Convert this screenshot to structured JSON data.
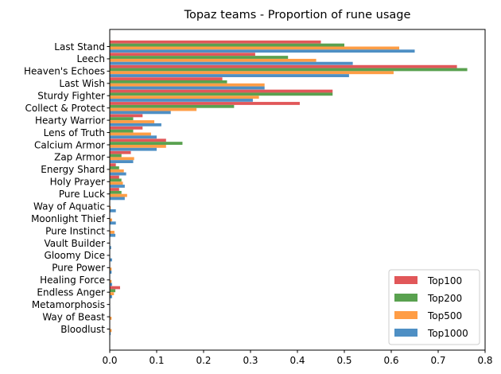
{
  "chart_data": {
    "type": "bar",
    "orientation": "horizontal",
    "title": "Topaz teams - Proportion of rune usage",
    "xlabel": "",
    "ylabel": "",
    "xlim": [
      0,
      0.8
    ],
    "xticks": [
      "0.0",
      "0.1",
      "0.2",
      "0.3",
      "0.4",
      "0.5",
      "0.6",
      "0.7",
      "0.8"
    ],
    "grid": false,
    "legend_position": "lower-right",
    "categories": [
      "Last Stand",
      "Leech",
      "Heaven's Echoes",
      "Last Wish",
      "Sturdy Fighter",
      "Collect & Protect",
      "Hearty Warrior",
      "Lens of Truth",
      "Calcium Armor",
      "Zap Armor",
      "Energy Shard",
      "Holy Prayer",
      "Pure Luck",
      "Way of Aquatic",
      "Moonlight Thief",
      "Pure Instinct",
      "Vault Builder",
      "Gloomy Dice",
      "Pure Power",
      "Healing Force",
      "Endless Anger",
      "Metamorphosis",
      "Way of Beast",
      "Bloodlust"
    ],
    "series": [
      {
        "name": "Top100",
        "color": "#e15759",
        "values": [
          0.45,
          0.31,
          0.74,
          0.24,
          0.475,
          0.405,
          0.07,
          0.07,
          0.12,
          0.045,
          0.013,
          0.02,
          0.02,
          0.0,
          0.0,
          0.0,
          0.0,
          0.0,
          0.0,
          0.0,
          0.022,
          0.0,
          0.0,
          0.0
        ]
      },
      {
        "name": "Top200",
        "color": "#59a14f",
        "values": [
          0.5,
          0.38,
          0.762,
          0.25,
          0.475,
          0.265,
          0.05,
          0.05,
          0.155,
          0.025,
          0.02,
          0.025,
          0.025,
          0.0,
          0.0,
          0.0,
          0.0,
          0.0,
          0.0,
          0.0,
          0.012,
          0.0,
          0.0,
          0.0
        ]
      },
      {
        "name": "Top500",
        "color": "#ff9d45",
        "values": [
          0.617,
          0.44,
          0.605,
          0.33,
          0.318,
          0.185,
          0.095,
          0.088,
          0.12,
          0.052,
          0.03,
          0.028,
          0.037,
          0.002,
          0.005,
          0.01,
          0.0,
          0.0,
          0.004,
          0.004,
          0.009,
          0.0,
          0.004,
          0.004
        ]
      },
      {
        "name": "Top1000",
        "color": "#4e8fc4",
        "values": [
          0.65,
          0.518,
          0.51,
          0.33,
          0.305,
          0.13,
          0.11,
          0.1,
          0.1,
          0.05,
          0.035,
          0.032,
          0.032,
          0.013,
          0.013,
          0.012,
          0.003,
          0.005,
          0.004,
          0.005,
          0.005,
          0.001,
          0.0,
          0.002
        ]
      }
    ]
  }
}
